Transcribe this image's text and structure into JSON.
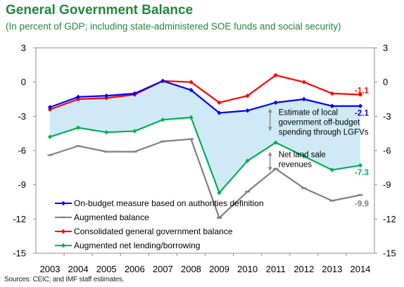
{
  "chart_data": {
    "type": "line",
    "title": "General Government Balance",
    "subtitle": "(In percent of GDP; including state-administered SOE funds and social security)",
    "source": "Sources: CEIC; and IMF staff estimates.",
    "x": [
      "2003",
      "2004",
      "2005",
      "2006",
      "2007",
      "2008",
      "2009",
      "2010",
      "2011",
      "2012",
      "2013",
      "2014"
    ],
    "ylim": [
      -15,
      3
    ],
    "yticks": [
      "3",
      "0",
      "-3",
      "-6",
      "-9",
      "-12",
      "-15"
    ],
    "ytick_values": [
      3,
      0,
      -3,
      -6,
      -9,
      -12,
      -15
    ],
    "grid": false,
    "legend_position": "bottom-left",
    "series": [
      {
        "name": "On-budget measure based on authorities definition",
        "color": "#0000ff",
        "marker": "diamond",
        "values": [
          -2.2,
          -1.3,
          -1.2,
          -1.0,
          0.1,
          -0.7,
          -2.7,
          -2.5,
          -1.8,
          -1.5,
          -2.1,
          -2.1
        ],
        "end_label": "-2.1"
      },
      {
        "name": "Augmented balance",
        "color": "#808080",
        "marker": "dash",
        "values": [
          -6.4,
          -5.6,
          -6.1,
          -6.1,
          -5.2,
          -5.0,
          -11.9,
          -9.6,
          -7.6,
          -9.3,
          -10.4,
          -9.9
        ],
        "end_label": "-9.9"
      },
      {
        "name": "Consolidated general government balance",
        "color": "#ff0000",
        "marker": "diamond",
        "values": [
          -2.4,
          -1.5,
          -1.4,
          -1.1,
          0.1,
          0.0,
          -1.8,
          -1.2,
          0.6,
          0.0,
          -1.0,
          -1.1
        ],
        "end_label": "-1.1"
      },
      {
        "name": "Augmented net lending/borrowing",
        "color": "#00b050",
        "marker": "diamond",
        "values": [
          -4.8,
          -4.0,
          -4.4,
          -4.3,
          -3.3,
          -3.1,
          -9.7,
          -6.9,
          -5.3,
          -6.5,
          -7.7,
          -7.3
        ],
        "end_label": "-7.3"
      }
    ],
    "shaded_band": {
      "color": "#cfeaf6",
      "upper_series": "On-budget measure based on authorities definition",
      "lower_series": "Augmented net lending/borrowing"
    },
    "annotations": [
      {
        "lines": [
          "Estimate of local",
          "government off-budget",
          "spending through LGFVs"
        ]
      },
      {
        "lines": [
          "Net land sale",
          "revenues"
        ]
      }
    ]
  }
}
